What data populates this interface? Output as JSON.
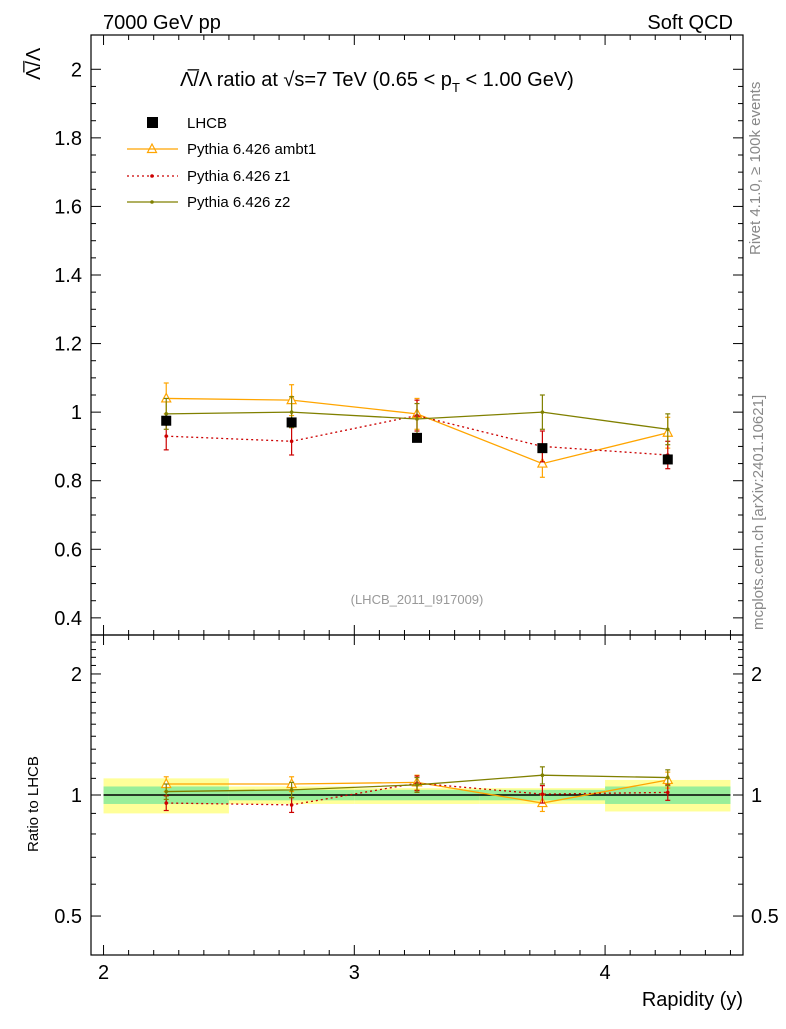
{
  "header": {
    "left": "7000 GeV pp",
    "right": "Soft QCD"
  },
  "side_labels": {
    "rivet": "Rivet 4.1.0, ≥ 100k events",
    "mcplots": "mcplots.cern.ch [arXiv:2401.10621]"
  },
  "chart_data": [
    {
      "type": "line",
      "title": "Λ̅/Λ ratio at √s=7 TeV (0.65 < pT < 1.00 GeV)",
      "title_parts": {
        "main": "Λ̅/Λ ratio at √s=7 TeV (0.65 < p",
        "sub": "T",
        "tail": " < 1.00 GeV)"
      },
      "ylabel": "Λ̅/Λ",
      "xlim": [
        1.95,
        4.55
      ],
      "ylim": [
        0.35,
        2.1
      ],
      "yticks": [
        0.4,
        0.6,
        0.8,
        1,
        1.2,
        1.4,
        1.6,
        1.8,
        2
      ],
      "ytick_labels": [
        "0.4",
        "0.6",
        "0.8",
        "1",
        "1.2",
        "1.4",
        "1.6",
        "1.8",
        "2"
      ],
      "watermark": "(LHCB_2011_I917009)",
      "legend_position": "top-left",
      "data": {
        "name": "LHCB",
        "color": "#000000",
        "x": [
          2.25,
          2.75,
          3.25,
          3.75,
          4.25
        ],
        "y": [
          0.975,
          0.97,
          0.925,
          0.895,
          0.862
        ],
        "yerr": [
          0.015,
          0.015,
          0.01,
          0.012,
          0.012
        ]
      },
      "series": [
        {
          "name": "Pythia 6.426 ambt1",
          "color": "#ffa500",
          "marker": "triangle",
          "dash": "",
          "x": [
            2.25,
            2.75,
            3.25,
            3.75,
            4.25
          ],
          "y": [
            1.04,
            1.035,
            0.995,
            0.85,
            0.94
          ],
          "yerr": [
            0.045,
            0.045,
            0.045,
            0.04,
            0.045
          ]
        },
        {
          "name": "Pythia 6.426 z1",
          "color": "#cc0000",
          "marker": "dot",
          "dash": "2,3",
          "x": [
            2.25,
            2.75,
            3.25,
            3.75,
            4.25
          ],
          "y": [
            0.93,
            0.915,
            0.99,
            0.9,
            0.875
          ],
          "yerr": [
            0.04,
            0.04,
            0.045,
            0.045,
            0.04
          ]
        },
        {
          "name": "Pythia 6.426 z2",
          "color": "#808000",
          "marker": "dot",
          "dash": "",
          "x": [
            2.25,
            2.75,
            3.25,
            3.75,
            4.25
          ],
          "y": [
            0.995,
            1.0,
            0.98,
            1.0,
            0.95
          ],
          "yerr": [
            0.045,
            0.045,
            0.045,
            0.05,
            0.045
          ]
        }
      ]
    },
    {
      "type": "line",
      "ylabel": "Ratio to LHCB",
      "xlabel": "Rapidity (y)",
      "scale": "log",
      "xlim": [
        1.95,
        4.55
      ],
      "ylim": [
        0.4,
        2.5
      ],
      "xticks": [
        2,
        3,
        4
      ],
      "xtick_labels": [
        "2",
        "3",
        "4"
      ],
      "yticks": [
        0.5,
        1,
        2
      ],
      "ytick_labels": [
        "0.5",
        "1",
        "2"
      ],
      "bands": [
        {
          "x0": 2.0,
          "x1": 2.5,
          "inner": [
            0.95,
            1.05
          ],
          "outer": [
            0.9,
            1.1
          ]
        },
        {
          "x0": 2.5,
          "x1": 3.0,
          "inner": [
            0.97,
            1.03
          ],
          "outer": [
            0.95,
            1.05
          ]
        },
        {
          "x0": 3.0,
          "x1": 3.5,
          "inner": [
            0.97,
            1.03
          ],
          "outer": [
            0.95,
            1.04
          ]
        },
        {
          "x0": 3.5,
          "x1": 4.0,
          "inner": [
            0.97,
            1.03
          ],
          "outer": [
            0.95,
            1.04
          ]
        },
        {
          "x0": 4.0,
          "x1": 4.5,
          "inner": [
            0.95,
            1.05
          ],
          "outer": [
            0.91,
            1.09
          ]
        }
      ],
      "series": [
        {
          "name": "Pythia 6.426 ambt1",
          "color": "#ffa500",
          "marker": "triangle",
          "dash": "",
          "x": [
            2.25,
            2.75,
            3.25,
            3.75,
            4.25
          ],
          "y": [
            1.065,
            1.065,
            1.075,
            0.955,
            1.09
          ],
          "yerr": [
            0.045,
            0.045,
            0.045,
            0.045,
            0.05
          ]
        },
        {
          "name": "Pythia 6.426 z1",
          "color": "#cc0000",
          "marker": "dot",
          "dash": "2,3",
          "x": [
            2.25,
            2.75,
            3.25,
            3.75,
            4.25
          ],
          "y": [
            0.955,
            0.945,
            1.07,
            1.005,
            1.015
          ],
          "yerr": [
            0.04,
            0.04,
            0.045,
            0.05,
            0.045
          ]
        },
        {
          "name": "Pythia 6.426 z2",
          "color": "#808000",
          "marker": "dot",
          "dash": "",
          "x": [
            2.25,
            2.75,
            3.25,
            3.75,
            4.25
          ],
          "y": [
            1.02,
            1.03,
            1.06,
            1.12,
            1.105
          ],
          "yerr": [
            0.045,
            0.045,
            0.045,
            0.055,
            0.05
          ]
        }
      ]
    }
  ]
}
